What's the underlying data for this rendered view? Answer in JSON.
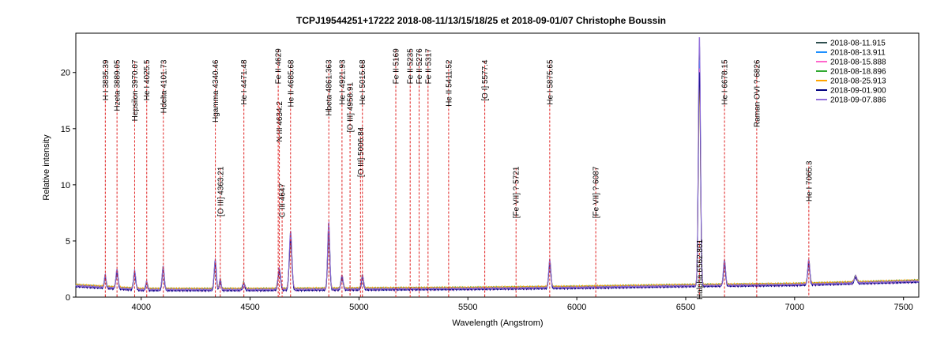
{
  "chart_data": {
    "type": "line",
    "title": "TCPJ19544251+17222   2018-08-11/13/15/18/25 et 2018-09-01/07   Christophe Boussin",
    "xlabel": "Wavelength (Angstrom)",
    "ylabel": "Relative intensity",
    "xlim": [
      3700,
      7570
    ],
    "ylim": [
      0,
      23.5
    ],
    "xticks": [
      4000,
      4500,
      5000,
      5500,
      6000,
      6500,
      7000,
      7500
    ],
    "yticks": [
      0,
      5,
      10,
      15,
      20
    ],
    "grid": false,
    "legend_position": "top-right",
    "series": [
      {
        "name": "2018-08-11.915",
        "color": "#2f4f4f",
        "scale": 1.0,
        "offset": 0.05
      },
      {
        "name": "2018-08-13.911",
        "color": "#1e90ff",
        "scale": 0.95,
        "offset": 0.0
      },
      {
        "name": "2018-08-15.888",
        "color": "#ff66cc",
        "scale": 0.92,
        "offset": -0.03
      },
      {
        "name": "2018-08-18.896",
        "color": "#33aa33",
        "scale": 0.88,
        "offset": 0.08
      },
      {
        "name": "2018-08-25.913",
        "color": "#ffa500",
        "scale": 0.85,
        "offset": 0.1
      },
      {
        "name": "2018-09-01.900",
        "color": "#000080",
        "scale": 0.9,
        "offset": -0.05
      },
      {
        "name": "2018-09-07.886",
        "color": "#9370db",
        "scale": 1.05,
        "offset": 0.02
      }
    ],
    "continuum": [
      [
        3700,
        1.0
      ],
      [
        4000,
        0.65
      ],
      [
        4500,
        0.65
      ],
      [
        5000,
        0.7
      ],
      [
        5500,
        0.75
      ],
      [
        6000,
        0.85
      ],
      [
        6500,
        1.0
      ],
      [
        7000,
        1.1
      ],
      [
        7570,
        1.4
      ]
    ],
    "emission_peaks": [
      {
        "x": 3835,
        "h": 1.1,
        "w": 4
      },
      {
        "x": 3889,
        "h": 1.6,
        "w": 5
      },
      {
        "x": 3970,
        "h": 1.6,
        "w": 5
      },
      {
        "x": 4025,
        "h": 0.7,
        "w": 4
      },
      {
        "x": 4101,
        "h": 2.0,
        "w": 5
      },
      {
        "x": 4340,
        "h": 2.6,
        "w": 5
      },
      {
        "x": 4363,
        "h": 0.9,
        "w": 4
      },
      {
        "x": 4471,
        "h": 0.6,
        "w": 5
      },
      {
        "x": 4634,
        "h": 1.8,
        "w": 6
      },
      {
        "x": 4686,
        "h": 5.0,
        "w": 6
      },
      {
        "x": 4861,
        "h": 5.8,
        "w": 5
      },
      {
        "x": 4922,
        "h": 1.2,
        "w": 5
      },
      {
        "x": 5016,
        "h": 1.2,
        "w": 5
      },
      {
        "x": 5876,
        "h": 2.4,
        "w": 5
      },
      {
        "x": 6563,
        "h": 21.5,
        "w": 5
      },
      {
        "x": 6678,
        "h": 2.2,
        "w": 5
      },
      {
        "x": 7065,
        "h": 2.1,
        "w": 5
      },
      {
        "x": 7280,
        "h": 0.6,
        "w": 6
      }
    ],
    "line_ids": [
      {
        "label": "H I 3835.39",
        "x": 3835.39,
        "y_top": 21.0
      },
      {
        "label": "Hzeta 3889.05",
        "x": 3889.05,
        "y_top": 21.0
      },
      {
        "label": "Hepsilon 3970.07",
        "x": 3970.07,
        "y_top": 21.0
      },
      {
        "label": "He I 4025.5",
        "x": 4025.5,
        "y_top": 21.0
      },
      {
        "label": "Hdelta 4101.73",
        "x": 4101.73,
        "y_top": 21.0
      },
      {
        "label": "Hgamma 4340.46",
        "x": 4340.46,
        "y_top": 21.0
      },
      {
        "label": "[O III] 4363.21",
        "x": 4363.21,
        "y_top": 11.5
      },
      {
        "label": "He I 4471.48",
        "x": 4471.48,
        "y_top": 21.0
      },
      {
        "label": "N III 4634.2",
        "x": 4634.2,
        "y_top": 17.3
      },
      {
        "label": "Fe II 4629",
        "x": 4629,
        "y_top": 22.0
      },
      {
        "label": "C III 4647",
        "x": 4647,
        "y_top": 10.0
      },
      {
        "label": "He II 4685.68",
        "x": 4685.68,
        "y_top": 21.0
      },
      {
        "label": "Hbeta 4861.363",
        "x": 4861.363,
        "y_top": 21.0
      },
      {
        "label": "He I 4921.93",
        "x": 4921.93,
        "y_top": 21.0
      },
      {
        "label": "[O III] 4958.91",
        "x": 4958.91,
        "y_top": 19.0
      },
      {
        "label": "[O III] 5006.84",
        "x": 5006.84,
        "y_top": 15.0
      },
      {
        "label": "He I 5015.68",
        "x": 5015.68,
        "y_top": 21.0
      },
      {
        "label": "Fe II 5169",
        "x": 5169,
        "y_top": 22.0
      },
      {
        "label": "Fe II 5235",
        "x": 5235,
        "y_top": 22.0
      },
      {
        "label": "Fe II 5276",
        "x": 5276,
        "y_top": 22.0
      },
      {
        "label": "Fe II 5317",
        "x": 5317,
        "y_top": 22.0
      },
      {
        "label": "He II 5411.52",
        "x": 5411.52,
        "y_top": 21.0
      },
      {
        "label": "[O I] 5577.4",
        "x": 5577.4,
        "y_top": 21.0
      },
      {
        "label": "[Fe VII] ? 5721",
        "x": 5721,
        "y_top": 11.5
      },
      {
        "label": "He I 5875.65",
        "x": 5875.65,
        "y_top": 21.0
      },
      {
        "label": "[Fe VII] ? 6087",
        "x": 6087,
        "y_top": 11.5
      },
      {
        "label": "Halpha 6562.801",
        "x": 6562.801,
        "y_top": 5.0
      },
      {
        "label": "He I 6678.15",
        "x": 6678.15,
        "y_top": 21.0
      },
      {
        "label": "Raman OVI ? 6826",
        "x": 6826,
        "y_top": 21.0
      },
      {
        "label": "He I 7065.3",
        "x": 7065.3,
        "y_top": 12.0
      }
    ]
  }
}
